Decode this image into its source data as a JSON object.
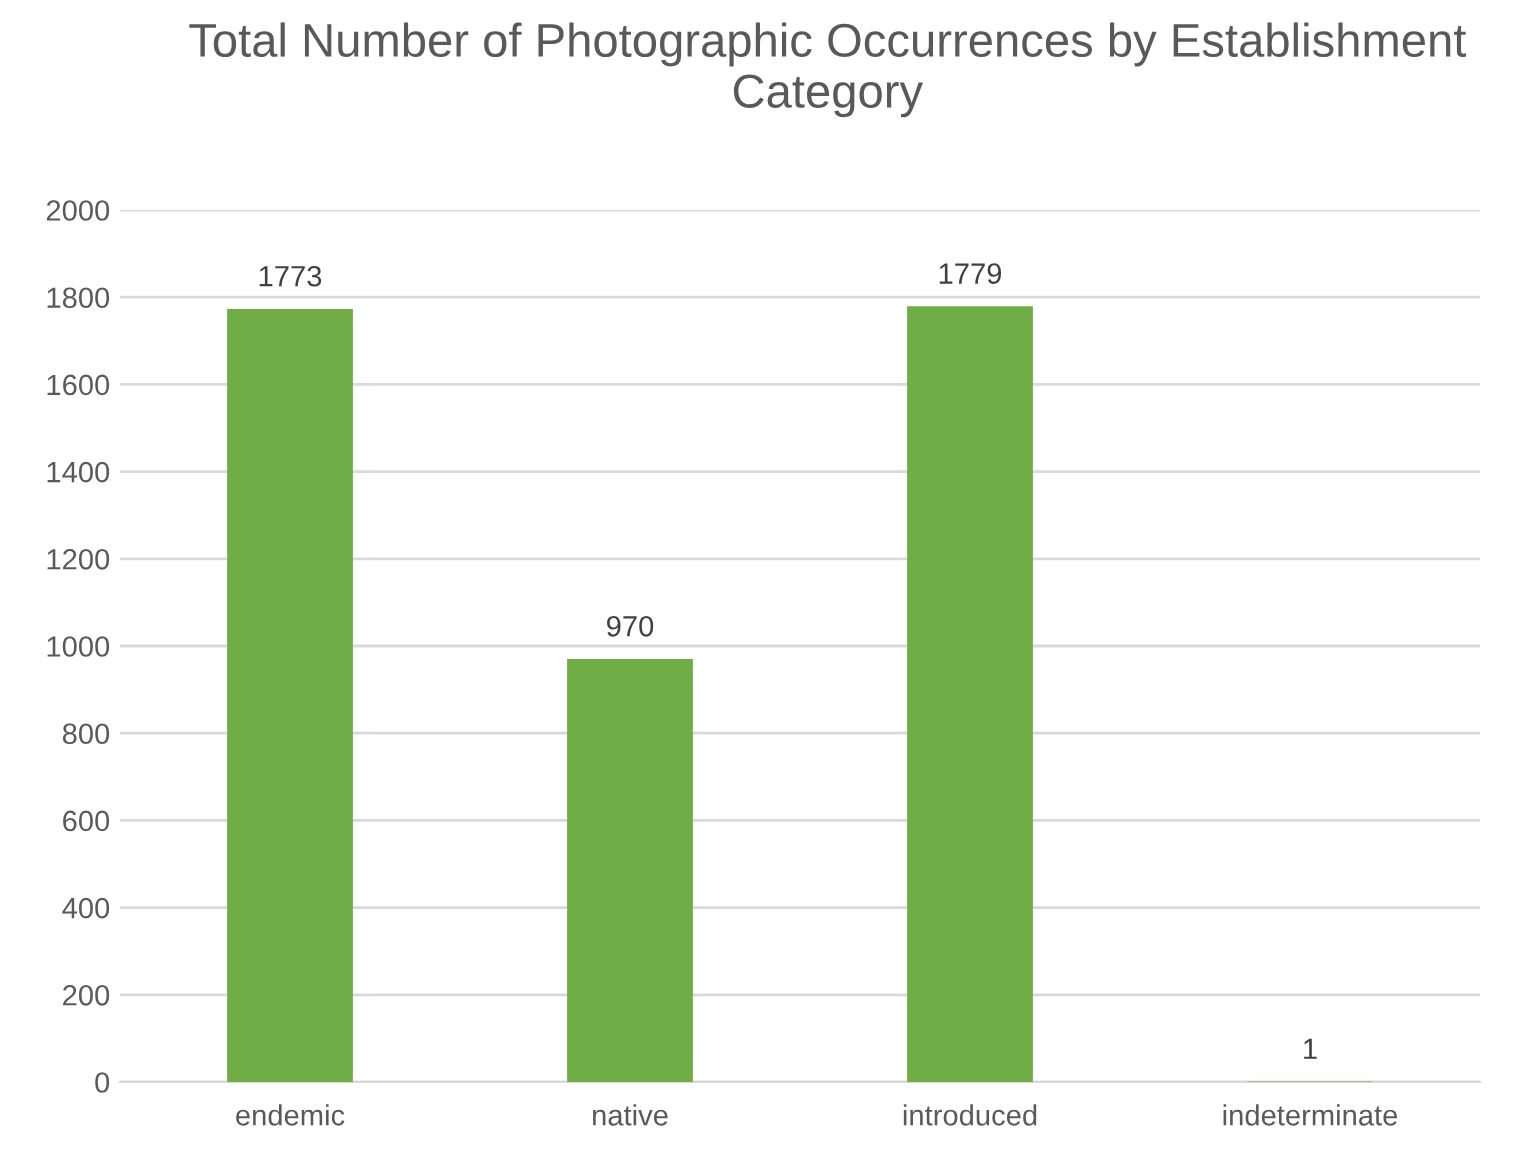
{
  "chart_data": {
    "type": "bar",
    "title": "Total Number of Photographic Occurrences by Establishment Category",
    "categories": [
      "endemic",
      "native",
      "introduced",
      "indeterminate"
    ],
    "values": [
      1773,
      970,
      1779,
      1
    ],
    "color": "#70ad47",
    "ylim": [
      0,
      2000
    ],
    "yticks": [
      0,
      200,
      400,
      600,
      800,
      1000,
      1200,
      1400,
      1600,
      1800,
      2000
    ],
    "grid": "y",
    "data_labels": true
  }
}
